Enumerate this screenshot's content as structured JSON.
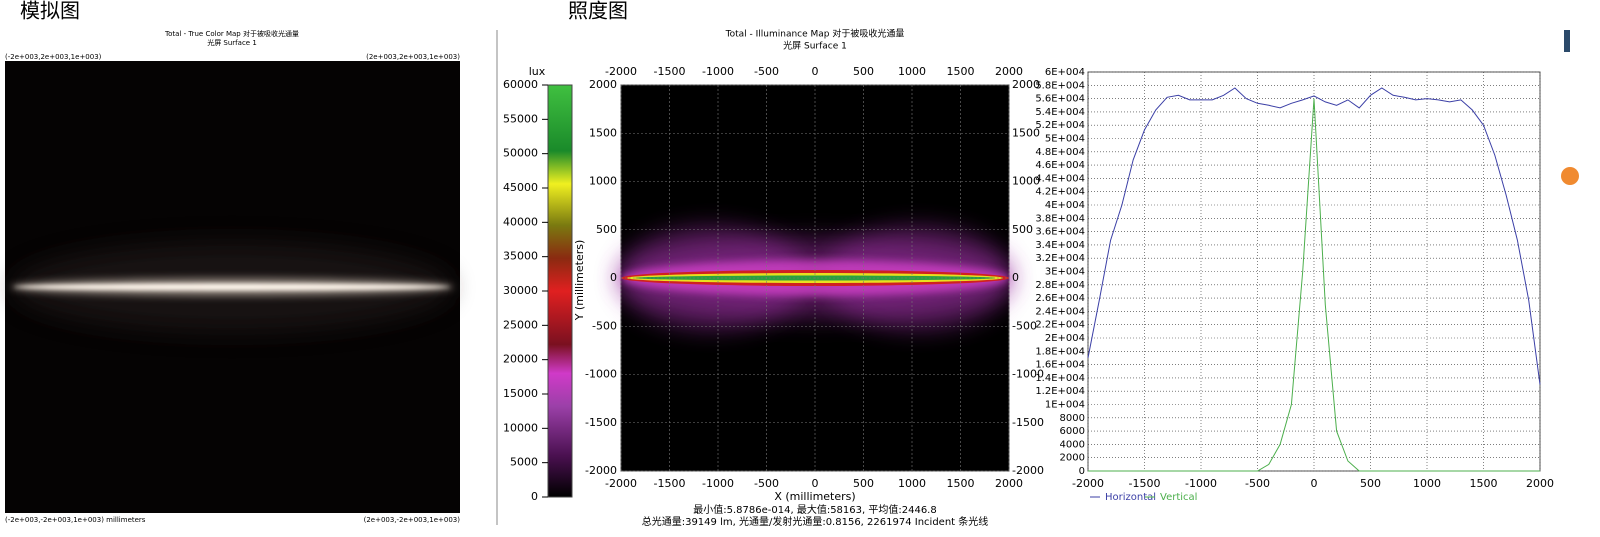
{
  "true_color_map": {
    "heading": "模拟图",
    "title": "Total - True Color Map 对于被吸收光通量",
    "subtitle": "光屏 Surface 1",
    "corner_top_left": "(-2e+003,2e+003,1e+003)",
    "corner_top_right": "(2e+003,2e+003,1e+003)",
    "corner_bottom_left": "(-2e+003,-2e+003,1e+003) millimeters",
    "corner_bottom_right": "(2e+003,-2e+003,1e+003)"
  },
  "chart_data": [
    {
      "type": "heatmap",
      "heading": "照度图",
      "title": "Total - Illuminance Map 对于被吸收光通量",
      "subtitle": "光屏 Surface 1",
      "colorbar_label": "lux",
      "clim": [
        0,
        60000
      ],
      "cticks": [
        0,
        5000,
        10000,
        15000,
        20000,
        25000,
        30000,
        35000,
        40000,
        45000,
        50000,
        55000,
        60000
      ],
      "xlabel": "X (millimeters)",
      "ylabel": "Y (millimeters)",
      "xlim": [
        -2000,
        2000
      ],
      "ylim": [
        -2000,
        2000
      ],
      "xticks": [
        -2000,
        -1500,
        -1000,
        -500,
        0,
        500,
        1000,
        1500,
        2000
      ],
      "yticks": [
        -2000,
        -1500,
        -1000,
        -500,
        0,
        500,
        1000,
        1500,
        2000
      ],
      "grid": true,
      "stats": "最小值:5.8786e-014, 最大值:58163, 平均值:2446.8",
      "flux": "总光通量:39149 lm, 光通量/发射光通量:0.8156, 2261974 Incident 条光线"
    },
    {
      "type": "line",
      "x": [
        -2000,
        -1900,
        -1800,
        -1700,
        -1600,
        -1500,
        -1400,
        -1300,
        -1200,
        -1100,
        -1000,
        -900,
        -800,
        -700,
        -600,
        -500,
        -400,
        -300,
        -200,
        -100,
        0,
        100,
        200,
        300,
        400,
        500,
        600,
        700,
        800,
        900,
        1000,
        1100,
        1200,
        1300,
        1400,
        1500,
        1600,
        1700,
        1800,
        1900,
        2000
      ],
      "series": [
        {
          "name": "Horizontal",
          "color": "#3b3fa6",
          "values": [
            17000,
            25700,
            34700,
            40000,
            46800,
            51300,
            54300,
            56200,
            56500,
            55800,
            55800,
            55800,
            56500,
            57600,
            56000,
            55300,
            55000,
            54600,
            55300,
            55800,
            56400,
            55500,
            55000,
            55800,
            54600,
            56500,
            57600,
            56500,
            56200,
            55800,
            56000,
            55800,
            55500,
            55800,
            54300,
            52000,
            47500,
            41500,
            34700,
            25700,
            13000
          ]
        },
        {
          "name": "Vertical",
          "color": "#4caf4c",
          "values": [
            0,
            0,
            0,
            0,
            0,
            0,
            0,
            0,
            0,
            0,
            0,
            0,
            0,
            0,
            0,
            0,
            1000,
            4000,
            10000,
            30000,
            56000,
            25000,
            6000,
            1500,
            0,
            0,
            0,
            0,
            0,
            0,
            0,
            0,
            0,
            0,
            0,
            0,
            0,
            0,
            0,
            0,
            0
          ]
        }
      ],
      "xlim": [
        -2000,
        2000
      ],
      "ylim": [
        0,
        60000
      ],
      "xticks": [
        -2000,
        -1500,
        -1000,
        -500,
        0,
        500,
        1000,
        1500,
        2000
      ],
      "yticks": [
        0,
        2000,
        4000,
        6000,
        8000,
        {
          "value": 10000,
          "label": "1E+004"
        },
        {
          "value": 12000,
          "label": "1.2E+004"
        },
        {
          "value": 14000,
          "label": "1.4E+004"
        },
        {
          "value": 16000,
          "label": "1.6E+004"
        },
        {
          "value": 18000,
          "label": "1.8E+004"
        },
        {
          "value": 20000,
          "label": "2E+004"
        },
        {
          "value": 22000,
          "label": "2.2E+004"
        },
        {
          "value": 24000,
          "label": "2.4E+004"
        },
        {
          "value": 26000,
          "label": "2.6E+004"
        },
        {
          "value": 28000,
          "label": "2.8E+004"
        },
        {
          "value": 30000,
          "label": "3E+004"
        },
        {
          "value": 32000,
          "label": "3.2E+004"
        },
        {
          "value": 34000,
          "label": "3.4E+004"
        },
        {
          "value": 36000,
          "label": "3.6E+004"
        },
        {
          "value": 38000,
          "label": "3.8E+004"
        },
        {
          "value": 40000,
          "label": "4E+004"
        },
        {
          "value": 42000,
          "label": "4.2E+004"
        },
        {
          "value": 44000,
          "label": "4.4E+004"
        },
        {
          "value": 46000,
          "label": "4.6E+004"
        },
        {
          "value": 48000,
          "label": "4.8E+004"
        },
        {
          "value": 50000,
          "label": "5E+004"
        },
        {
          "value": 52000,
          "label": "5.2E+004"
        },
        {
          "value": 54000,
          "label": "5.4E+004"
        },
        {
          "value": 56000,
          "label": "5.6E+004"
        },
        {
          "value": 58000,
          "label": "5.8E+004"
        },
        {
          "value": 60000,
          "label": "6E+004"
        }
      ],
      "grid": true
    }
  ]
}
